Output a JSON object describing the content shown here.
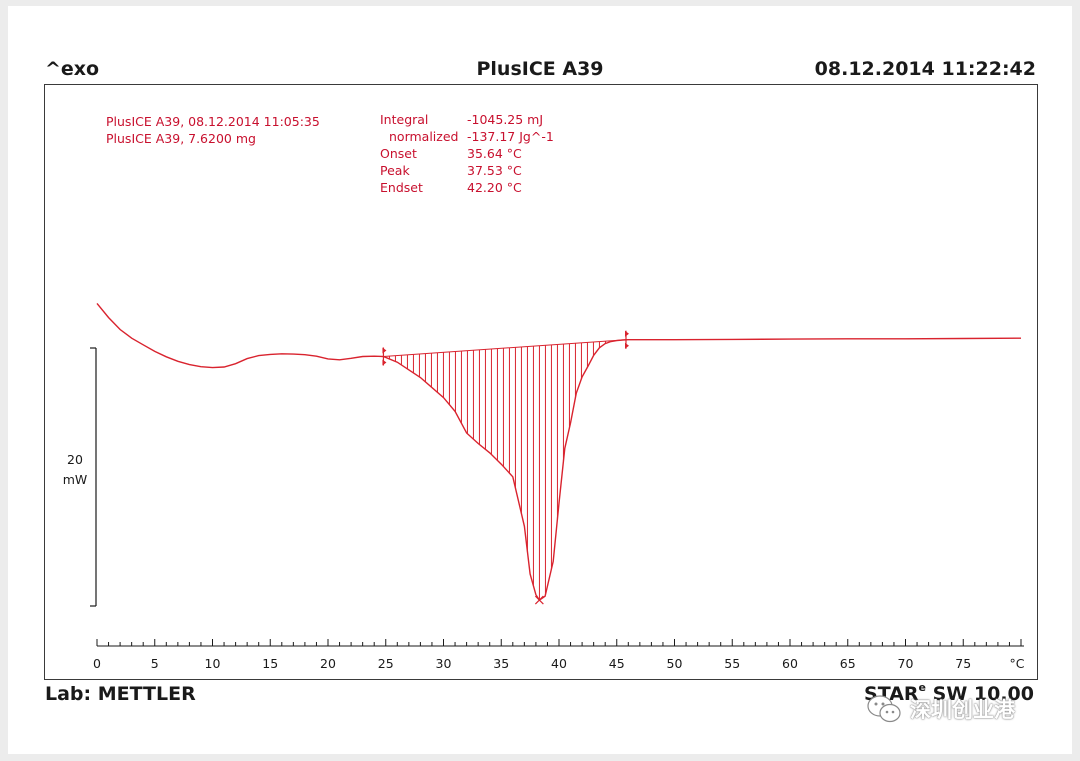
{
  "header": {
    "left": "^exo",
    "center": "PlusICE A39",
    "right": "08.12.2014 11:22:42"
  },
  "footer": {
    "left": "Lab: METTLER",
    "software_prefix": "STAR",
    "software_sup": "e",
    "software_suffix": " SW 10.00"
  },
  "watermark": {
    "text": "深圳创业港",
    "icon": "wechat-icon"
  },
  "sample_info": [
    "PlusICE A39, 08.12.2014 11:05:35",
    "PlusICE A39, 7.6200 mg"
  ],
  "results": [
    {
      "label": "Integral",
      "value": "-1045.25 mJ"
    },
    {
      "label": "normalized",
      "value": "-137.17 Jg^-1"
    },
    {
      "label": "Onset",
      "value": "35.64 °C"
    },
    {
      "label": "Peak",
      "value": "37.53 °C"
    },
    {
      "label": "Endset",
      "value": "42.20 °C"
    }
  ],
  "scale_bar": {
    "value": "20",
    "unit": "mW",
    "value_mw": 20
  },
  "colors": {
    "curve": "#d9232e",
    "text": "#c8102e",
    "axis": "#1a1a1a"
  },
  "chart_data": {
    "type": "line",
    "title": "PlusICE A39",
    "xlabel": "°C",
    "ylabel": "",
    "xlim": [
      0,
      80
    ],
    "x_ticks": [
      0,
      5,
      10,
      15,
      20,
      25,
      30,
      35,
      40,
      45,
      50,
      55,
      60,
      65,
      70,
      75
    ],
    "x_unit_label": "°C",
    "grid": false,
    "y_unit": "mW",
    "series": [
      {
        "x": [
          0,
          1,
          2,
          3,
          4,
          5,
          6,
          7,
          8,
          9,
          10,
          11,
          12,
          13,
          14,
          15,
          16,
          17,
          18,
          19,
          20,
          21,
          22,
          23,
          24,
          24.8,
          26,
          28,
          30,
          31,
          32,
          33,
          34,
          35,
          36,
          37,
          37.5,
          38,
          38.3,
          38.8,
          39.5,
          40,
          40.5,
          41,
          41.5,
          42,
          42.5,
          43,
          43.5,
          44,
          44.5,
          45,
          45.5,
          46,
          48,
          50,
          55,
          60,
          65,
          70,
          75,
          80
        ],
        "y": [
          32.2,
          27.5,
          23.5,
          20.6,
          18.4,
          16.2,
          14.4,
          12.9,
          11.8,
          11.1,
          10.8,
          11.0,
          12.1,
          13.8,
          14.8,
          15.2,
          15.4,
          15.3,
          15.1,
          14.6,
          13.7,
          13.4,
          13.9,
          14.5,
          14.6,
          14.5,
          12.6,
          7.5,
          0.8,
          -3.8,
          -11.0,
          -14.5,
          -17.6,
          -21.4,
          -25.6,
          -42.1,
          -58.0,
          -64.9,
          -66.7,
          -65.4,
          -53.8,
          -34.4,
          -16.1,
          -7.7,
          2.3,
          7.7,
          11.2,
          14.9,
          17.4,
          18.8,
          19.5,
          19.8,
          20.0,
          20.1,
          20.1,
          20.1,
          20.2,
          20.3,
          20.4,
          20.4,
          20.5,
          20.6
        ]
      }
    ],
    "integration": {
      "start": {
        "x": 24.8,
        "y": 14.5
      },
      "end": {
        "x": 45.8,
        "y": 20.1
      },
      "peak": {
        "x": 38.3,
        "y": -66.7
      }
    },
    "annotations": [
      "Integral -1045.25 mJ",
      "normalized -137.17 Jg^-1",
      "Onset 35.64 °C",
      "Peak 37.53 °C",
      "Endset 42.20 °C"
    ]
  }
}
